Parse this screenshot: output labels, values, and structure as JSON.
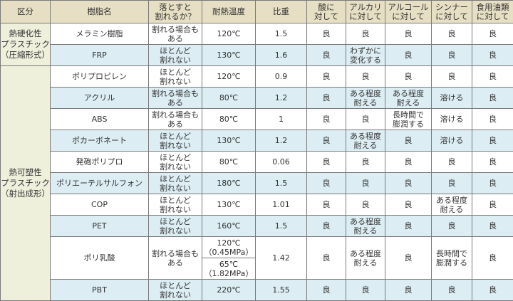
{
  "headers": [
    "区分",
    "樹脂名",
    "落とすと\n割れるか？",
    "耐熱温度",
    "比重",
    "酸に\n対して",
    "アルカリ\nに対して",
    "アルコール\nに対して",
    "シンナー\nに対して",
    "食用油類\nに対して"
  ],
  "groups": [
    {
      "label": "熱硬化性\nプラスチック\n（圧縮形式）",
      "rows": [
        {
          "name": "メラミン樹脂",
          "drop": "割れる場合も\nある",
          "heat": "120℃",
          "sg": "1.5",
          "acid": "良",
          "alkali": "良",
          "alcohol": "良",
          "thinner": "良",
          "oil": "良"
        },
        {
          "name": "FRP",
          "drop": "ほとんど\n割れない",
          "heat": "130℃",
          "sg": "1.6",
          "acid": "良",
          "alkali": "わずかに\n変化する",
          "alcohol": "良",
          "thinner": "良",
          "oil": "良"
        }
      ]
    },
    {
      "label": "熱可塑性\nプラスチック\n（射出成形）",
      "rows": [
        {
          "name": "ポリプロピレン",
          "drop": "ほとんど\n割れない",
          "heat": "120℃",
          "sg": "0.9",
          "acid": "良",
          "alkali": "良",
          "alcohol": "良",
          "thinner": "良",
          "oil": "良"
        },
        {
          "name": "アクリル",
          "drop": "割れる場合も\nある",
          "heat": "80℃",
          "sg": "1.2",
          "acid": "良",
          "alkali": "ある程度\n耐える",
          "alcohol": "ある程度\n耐える",
          "thinner": "溶ける",
          "oil": "良"
        },
        {
          "name": "ABS",
          "drop": "割れる場合も\nある",
          "heat": "80℃",
          "sg": "1",
          "acid": "良",
          "alkali": "良",
          "alcohol": "長時間で\n膨潤する",
          "thinner": "溶ける",
          "oil": "良"
        },
        {
          "name": "ポカーボネート",
          "drop": "ほとんど\n割れない",
          "heat": "130℃",
          "sg": "1.2",
          "acid": "良",
          "alkali": "ある程度\n耐える",
          "alcohol": "良",
          "thinner": "溶ける",
          "oil": "良"
        },
        {
          "name": "発砲ポリプロ",
          "drop": "ほとんど\n割れない",
          "heat": "80℃",
          "sg": "0.06",
          "acid": "良",
          "alkali": "良",
          "alcohol": "良",
          "thinner": "良",
          "oil": "良"
        },
        {
          "name": "ポリエーテルサルフォン",
          "drop": "ほとんど\n割れない",
          "heat": "180℃",
          "sg": "1.5",
          "acid": "良",
          "alkali": "良",
          "alcohol": "良",
          "thinner": "良",
          "oil": "良"
        },
        {
          "name": "COP",
          "drop": "ほとんど\n割れない",
          "heat": "130℃",
          "sg": "1.01",
          "acid": "良",
          "alkali": "良",
          "alcohol": "良",
          "thinner": "ある程度\n耐える",
          "oil": "良"
        },
        {
          "name": "PET",
          "drop": "ほとんど\n割れない",
          "heat": "160℃",
          "sg": "1.5",
          "acid": "良",
          "alkali": "ある程度\n耐える",
          "alcohol": "良",
          "thinner": "良",
          "oil": "良"
        },
        {
          "name": "ポリ乳酸",
          "drop": "割れる場合も\nある",
          "heat": "120℃\n（0.45MPa）",
          "heat2": "65℃\n（1.82MPa）",
          "sg": "1.42",
          "acid": "良",
          "alkali": "ある程度\n耐える",
          "alcohol": "良",
          "thinner": "長時間で\n膨潤する",
          "oil": "良"
        },
        {
          "name": "PBT",
          "drop": "ほとんど\n割れない",
          "heat": "220℃",
          "sg": "1.55",
          "acid": "良",
          "alkali": "良",
          "alcohol": "良",
          "thinner": "良",
          "oil": "良"
        }
      ]
    }
  ]
}
